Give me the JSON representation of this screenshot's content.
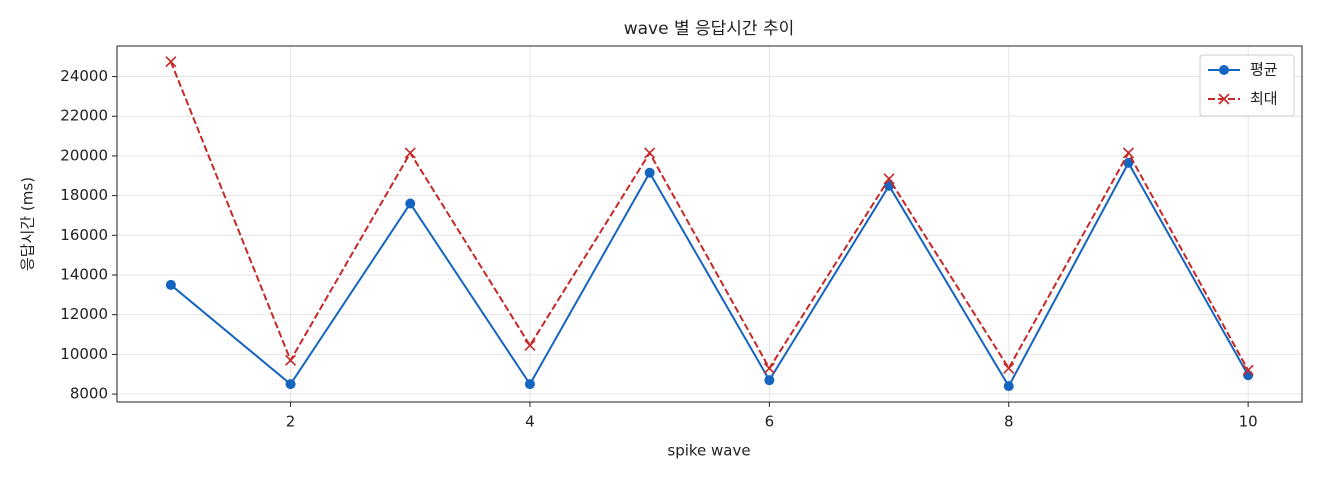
{
  "chart_data": {
    "type": "line",
    "title": "wave 별 응답시간 추이",
    "x_label": "spike wave",
    "y_label": "응답시간 (ms)",
    "x": [
      1,
      2,
      3,
      4,
      5,
      6,
      7,
      8,
      9,
      10
    ],
    "series": [
      {
        "name": "평균",
        "color": "#1565c0",
        "marker": "o",
        "linestyle": "solid",
        "values": [
          13500,
          8500,
          17600,
          8500,
          19150,
          8700,
          18500,
          8400,
          19650,
          8950
        ]
      },
      {
        "name": "최대",
        "color": "#c62828",
        "marker": "x",
        "linestyle": "dashed",
        "values": [
          24750,
          9700,
          20150,
          10450,
          20150,
          9300,
          18850,
          9300,
          20150,
          9200
        ]
      }
    ],
    "xlim": [
      0.55,
      10.45
    ],
    "xticks": [
      2,
      4,
      6,
      8,
      10
    ],
    "ylim": [
      7600,
      25540
    ],
    "yticks": [
      8000,
      10000,
      12000,
      14000,
      16000,
      18000,
      20000,
      22000,
      24000
    ],
    "grid": true,
    "legend": "upper right"
  }
}
